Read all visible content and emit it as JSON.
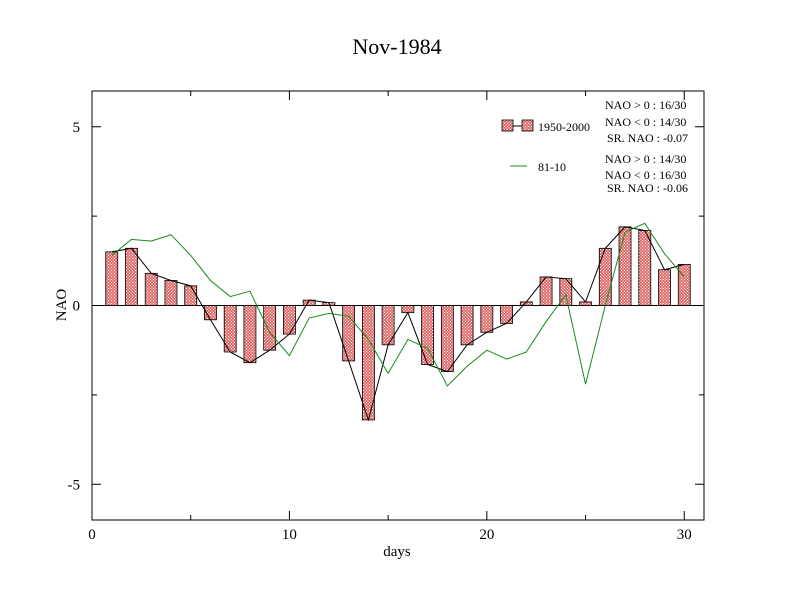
{
  "chart_data": {
    "type": "bar",
    "title": "Nov-1984",
    "xlabel": "days",
    "ylabel": "NAO",
    "xlim": [
      0,
      31
    ],
    "ylim": [
      -6,
      6
    ],
    "x_ticks": [
      0,
      10,
      20,
      30
    ],
    "y_ticks": [
      -5,
      0,
      5
    ],
    "grid": false,
    "legend_position": "top-right",
    "series": [
      {
        "name": "1950-2000",
        "kind": "bar-with-line",
        "color": "#e06a6a",
        "line_color": "#000000",
        "x": [
          1,
          2,
          3,
          4,
          5,
          6,
          7,
          8,
          9,
          10,
          11,
          12,
          13,
          14,
          15,
          16,
          17,
          18,
          19,
          20,
          21,
          22,
          23,
          24,
          25,
          26,
          27,
          28,
          29,
          30
        ],
        "values": [
          1.5,
          1.6,
          0.9,
          0.7,
          0.55,
          -0.4,
          -1.3,
          -1.6,
          -1.25,
          -0.8,
          0.15,
          0.08,
          -1.55,
          -3.2,
          -1.1,
          -0.2,
          -1.65,
          -1.85,
          -1.1,
          -0.75,
          -0.5,
          0.1,
          0.8,
          0.75,
          0.1,
          1.6,
          2.2,
          2.1,
          1.0,
          1.15
        ]
      },
      {
        "name": "81-10",
        "kind": "line",
        "color": "#1a8c1a",
        "x": [
          1,
          2,
          3,
          4,
          5,
          6,
          7,
          8,
          9,
          10,
          11,
          12,
          13,
          14,
          15,
          16,
          17,
          18,
          19,
          20,
          21,
          22,
          23,
          24,
          25,
          26,
          27,
          28,
          29,
          30
        ],
        "values": [
          1.4,
          1.85,
          1.8,
          1.98,
          1.4,
          0.7,
          0.25,
          0.4,
          -0.75,
          -1.4,
          -0.35,
          -0.22,
          -0.3,
          -0.95,
          -1.9,
          -0.95,
          -1.2,
          -2.25,
          -1.7,
          -1.25,
          -1.5,
          -1.3,
          -0.45,
          0.3,
          -2.2,
          0.0,
          2.05,
          2.3,
          1.45,
          0.8
        ]
      }
    ],
    "annotations": {
      "group1": [
        "NAO > 0 : 16/30",
        "NAO < 0 : 14/30",
        "SR. NAO : -0.07"
      ],
      "group2": [
        "NAO > 0 : 14/30",
        "NAO < 0 : 16/30",
        "SR. NAO : -0.06"
      ]
    }
  }
}
